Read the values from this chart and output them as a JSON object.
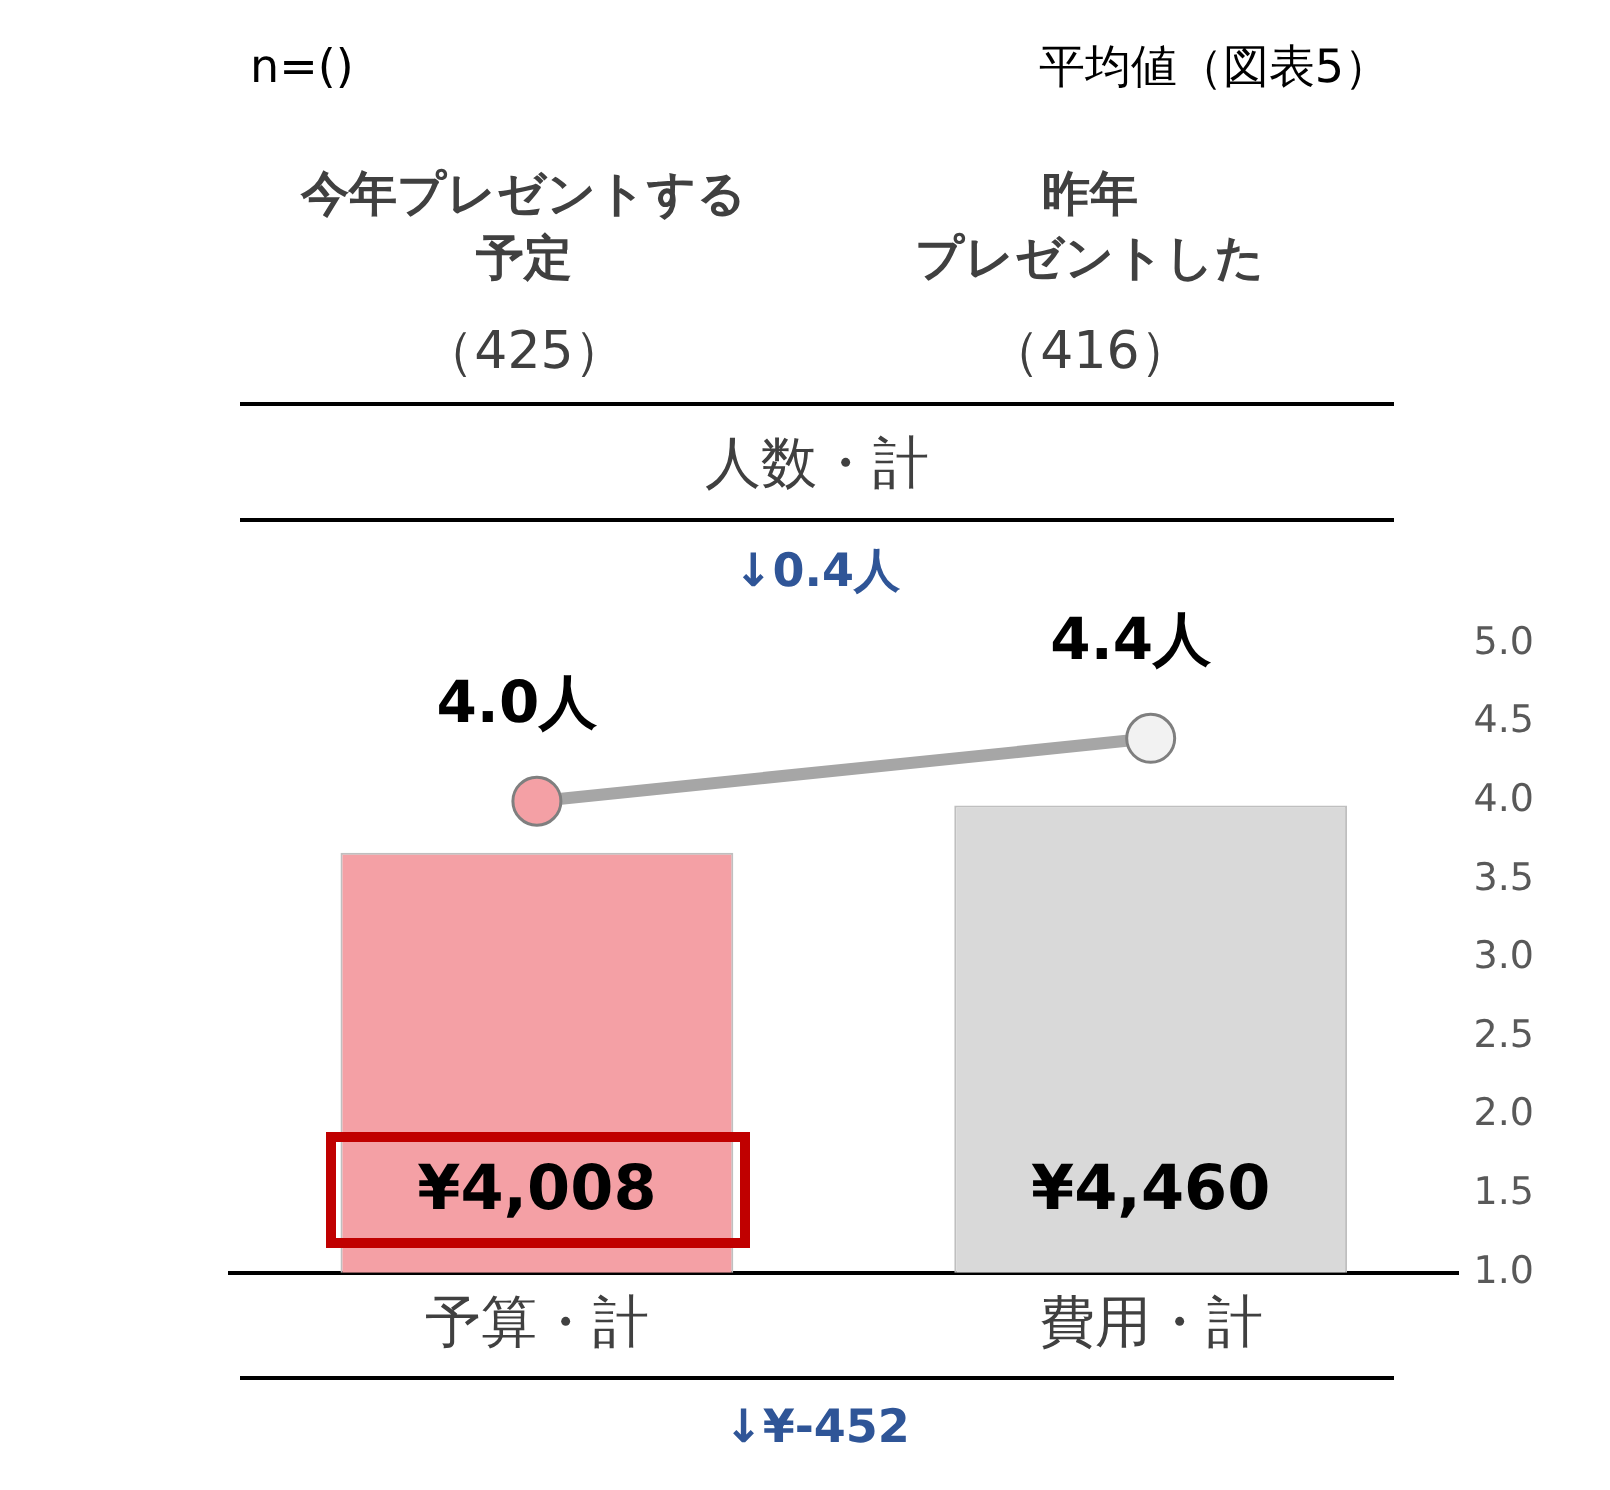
{
  "chart_data": {
    "type": "bar",
    "title": "平均値（図表5）",
    "categories": [
      "予算・計",
      "費用・計"
    ],
    "series": [
      {
        "name": null,
        "axis": "y2",
        "colors": [
          "#f4a0a5",
          "#d9d9d9"
        ],
        "values": [
          4008,
          4460
        ],
        "value_labels": [
          "¥4,008",
          "¥4,460"
        ]
      },
      {
        "name": null,
        "type": "line",
        "color": "#a6a6a6",
        "colors": [
          "#f4a0a5",
          "#f2f2f2"
        ],
        "values": [
          4.0,
          4.4
        ],
        "value_labels": [
          "4.0人",
          "4.4人"
        ]
      }
    ],
    "ylim": [
      1.0,
      5.0
    ],
    "yticks": [
      {
        "value": 1,
        "label": "1.0"
      },
      {
        "value": 1.5,
        "label": "1.5"
      },
      {
        "value": 2,
        "label": "2.0"
      },
      {
        "value": 2.5,
        "label": "2.5"
      },
      {
        "value": 3,
        "label": "3.0"
      },
      {
        "value": 3.5,
        "label": "3.5"
      },
      {
        "value": 4,
        "label": "4.0"
      },
      {
        "value": 4.5,
        "label": "4.5"
      },
      {
        "value": 5,
        "label": "5.0"
      }
    ],
    "marker": "circle",
    "annotations": [
      "n=()",
      "今年プレゼントする",
      "予定",
      "（425）",
      "昨年",
      "プレゼントした",
      "（416）",
      "人数・計",
      "↓0.4人",
      "↓¥-452"
    ]
  }
}
